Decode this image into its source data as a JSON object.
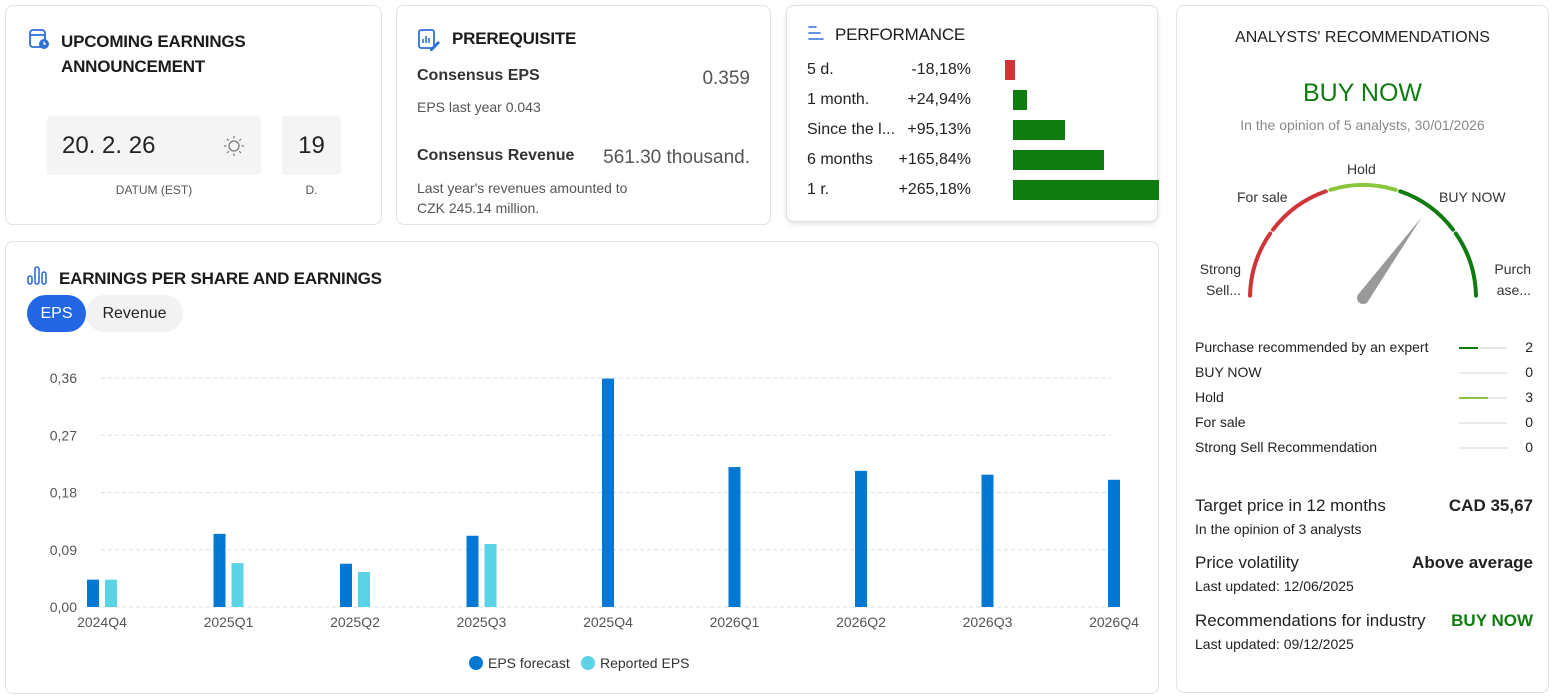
{
  "upcoming": {
    "title_line1": "UPCOMING EARNINGS",
    "title_line2": "ANNOUNCEMENT",
    "date": "20. 2. 26",
    "date_label": "DATUM (EST)",
    "days": "19",
    "days_label": "D.",
    "icon": "calendar-clock-icon",
    "time_icon": "sun-icon"
  },
  "prerequisite": {
    "title": "PREREQUISITE",
    "eps_label": "Consensus EPS",
    "eps_value": "0.359",
    "eps_last_year": "EPS last year 0.043",
    "revenue_label": "Consensus Revenue",
    "revenue_value": "561.30 thousand.",
    "revenue_note_line1": "Last year's revenues amounted to",
    "revenue_note_line2": "CZK 245.14 million."
  },
  "performance": {
    "title": "PERFORMANCE",
    "rows": [
      {
        "label": "5 d.",
        "value": "-18,18%",
        "pct": -18.18
      },
      {
        "label": "1 month.",
        "value": "+24,94%",
        "pct": 24.94
      },
      {
        "label": "Since the l...",
        "value": "+95,13%",
        "pct": 95.13
      },
      {
        "label": "6 months",
        "value": "+165,84%",
        "pct": 165.84
      },
      {
        "label": "1 r.",
        "value": "+265,18%",
        "pct": 265.18
      }
    ],
    "colors": {
      "positive": "#107c10",
      "negative": "#d13438"
    }
  },
  "analysts": {
    "title": "ANALYSTS' RECOMMENDATIONS",
    "verdict": "BUY NOW",
    "subtitle": "In the opinion of 5 analysts, 30/01/2026",
    "gauge_labels": {
      "strong_sell_1": "Strong",
      "strong_sell_2": "Sell...",
      "for_sale": "For sale",
      "hold": "Hold",
      "buy_now": "BUY NOW",
      "purchase_1": "Purch",
      "purchase_2": "ase..."
    },
    "breakdown": [
      {
        "label": "Purchase recommended by an expert",
        "count": "2",
        "n": 2,
        "color": "#107c10"
      },
      {
        "label": "BUY NOW",
        "count": "0",
        "n": 0,
        "color": "#107c10"
      },
      {
        "label": "Hold",
        "count": "3",
        "n": 3,
        "color": "#8cc63f"
      },
      {
        "label": "For sale",
        "count": "0",
        "n": 0,
        "color": "#d13438"
      },
      {
        "label": "Strong Sell Recommendation",
        "count": "0",
        "n": 0,
        "color": "#d13438"
      }
    ],
    "target_label": "Target price in 12 months",
    "target_value": "CAD 35,67",
    "target_note": "In the opinion of 3 analysts",
    "volatility_label": "Price volatility",
    "volatility_value": "Above average",
    "volatility_note": "Last updated: 12/06/2025",
    "industry_label": "Recommendations for industry",
    "industry_value": "BUY NOW",
    "industry_note": "Last updated: 09/12/2025"
  },
  "earnings": {
    "title": "EARNINGS PER SHARE AND EARNINGS",
    "tabs": [
      "EPS",
      "Revenue"
    ],
    "active_tab": "EPS"
  },
  "chart_data": {
    "type": "bar",
    "categories": [
      "2024Q4",
      "2025Q1",
      "2025Q2",
      "2025Q3",
      "2025Q4",
      "2026Q1",
      "2026Q2",
      "2026Q3",
      "2026Q4"
    ],
    "series": [
      {
        "name": "EPS forecast",
        "color": "#0078d4",
        "values": [
          0.043,
          0.115,
          0.068,
          0.112,
          0.359,
          0.22,
          0.214,
          0.208,
          0.2
        ]
      },
      {
        "name": "Reported EPS",
        "color": "#5bd3e6",
        "values": [
          0.043,
          0.069,
          0.055,
          0.099,
          null,
          null,
          null,
          null,
          null
        ]
      }
    ],
    "yticks": [
      "0,00",
      "0,09",
      "0,18",
      "0,27",
      "0,36"
    ],
    "ylim": [
      0,
      0.36
    ],
    "grid": true,
    "legend": "bottom"
  }
}
